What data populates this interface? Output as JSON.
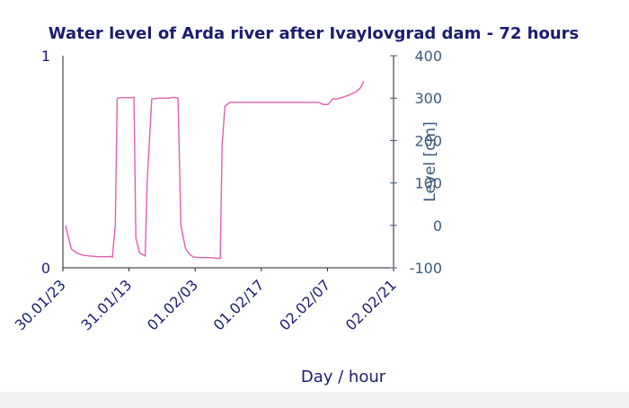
{
  "chart_data": {
    "type": "line",
    "title": "Water level of Arda river after Ivaylovgrad dam - 72 hours",
    "xlabel": "Day / hour",
    "ylabel_right": "Level [cm]",
    "x_ticks": [
      "30.01/23",
      "31.01/13",
      "01.02/03",
      "01.02/17",
      "02.02/07",
      "02.02/21"
    ],
    "y_left_ticks": [
      "1",
      "0"
    ],
    "y_right_ticks": [
      "400",
      "300",
      "200",
      "100",
      "0",
      "-100"
    ],
    "ylim_left": [
      0,
      1
    ],
    "ylim_right": [
      -100,
      400
    ],
    "grid": false,
    "line_color": "#e060b0",
    "series": [
      {
        "x_hours": [
          0,
          0.4,
          1.2,
          2.4,
          3.6,
          5,
          7,
          9,
          9.5,
          10,
          10.6,
          11,
          12,
          14,
          14.6,
          15,
          15.8,
          17,
          17.4,
          18.4,
          19,
          20,
          22,
          23,
          24,
          24.6,
          25.6,
          26.6,
          27.4,
          29,
          31,
          33,
          33.4,
          34,
          35,
          37,
          40,
          43,
          46,
          48,
          50,
          52,
          54,
          55,
          56,
          57,
          58,
          60,
          61,
          62,
          63,
          63.6
        ],
        "level_cm": [
          0,
          -20,
          -55,
          -65,
          -70,
          -72,
          -74,
          -74,
          -73,
          -75,
          0,
          300,
          301,
          301,
          302,
          -30,
          -65,
          -72,
          100,
          298,
          299,
          300,
          300,
          302,
          300,
          0,
          -55,
          -70,
          -75,
          -76,
          -76,
          -78,
          190,
          280,
          290,
          290,
          290,
          290,
          290,
          290,
          290,
          290,
          290,
          285,
          285,
          298,
          298,
          305,
          310,
          315,
          325,
          340
        ]
      }
    ]
  }
}
